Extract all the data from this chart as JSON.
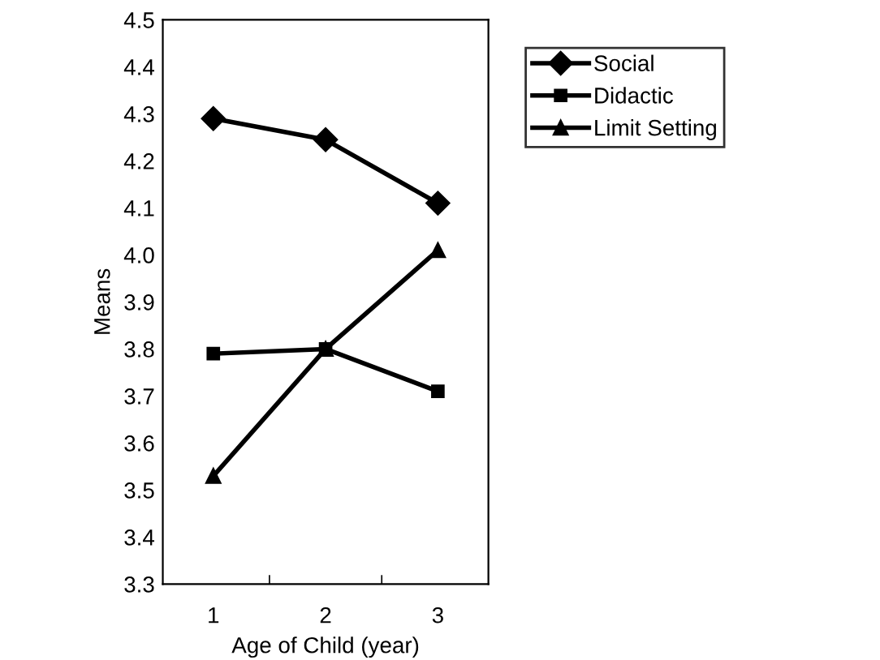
{
  "chart_data": {
    "type": "line",
    "xlabel": "Age of Child (year)",
    "ylabel": "Means",
    "categories": [
      "1",
      "2",
      "3"
    ],
    "series": [
      {
        "name": "Social",
        "color": "#000000",
        "marker": "diamond",
        "values": [
          4.29,
          4.245,
          4.11
        ]
      },
      {
        "name": "Didactic",
        "color": "#000000",
        "marker": "square",
        "values": [
          3.79,
          3.8,
          3.71
        ]
      },
      {
        "name": "Limit Setting",
        "color": "#000000",
        "marker": "triangle",
        "values": [
          3.53,
          3.8,
          4.01
        ]
      }
    ],
    "ylim": [
      3.3,
      4.5
    ],
    "yticks": [
      3.3,
      3.4,
      3.5,
      3.6,
      3.7,
      3.8,
      3.9,
      {
        "value": 4,
        "label": "4.0"
      },
      4.1,
      4.2,
      4.3,
      4.4,
      4.5
    ],
    "grid": false,
    "legend": "top right",
    "line_style": "solid"
  }
}
